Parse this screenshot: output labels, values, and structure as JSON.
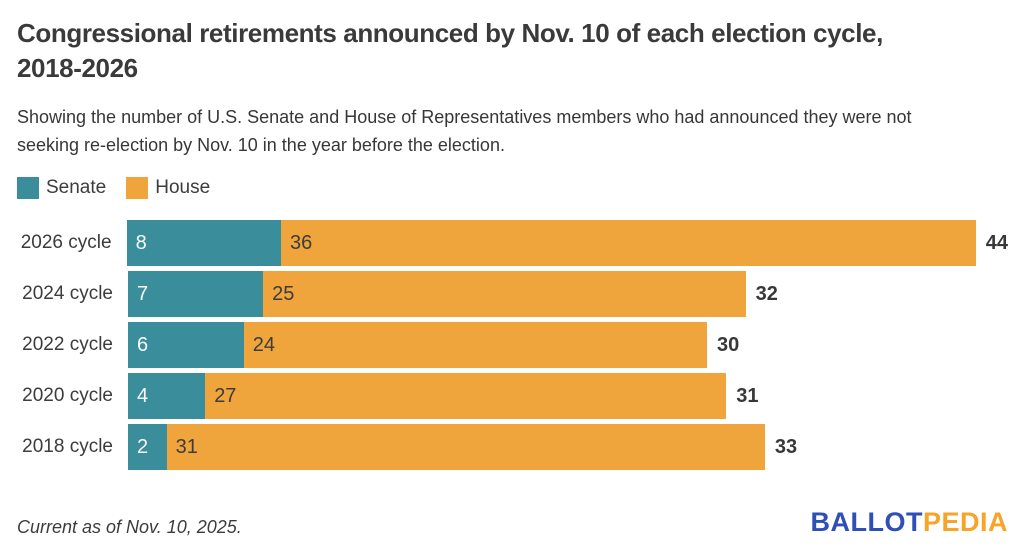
{
  "header": {
    "title_lines": [
      "Congressional retirements announced by Nov. 10 of each election cycle,",
      "2018-2026"
    ],
    "subtitle_lines": [
      "Showing the number of U.S. Senate and House of Representatives members who had announced they were not",
      "seeking re-election by Nov. 10 in the year before the election."
    ]
  },
  "legend": [
    {
      "label": "Senate",
      "color": "#3A8E9B"
    },
    {
      "label": "House",
      "color": "#F0A43C"
    }
  ],
  "chart_data": {
    "type": "bar",
    "orientation": "horizontal",
    "stacked": true,
    "title": "Congressional retirements announced by Nov. 10 of each election cycle, 2018-2026",
    "categories": [
      "2026 cycle",
      "2024 cycle",
      "2022 cycle",
      "2020 cycle",
      "2018 cycle"
    ],
    "series": [
      {
        "name": "Senate",
        "color": "#3A8E9B",
        "values": [
          8,
          7,
          6,
          4,
          2
        ]
      },
      {
        "name": "House",
        "color": "#F0A43C",
        "values": [
          36,
          25,
          24,
          27,
          31
        ]
      }
    ],
    "totals": [
      44,
      32,
      30,
      31,
      33
    ],
    "xlim": [
      0,
      44
    ],
    "grid": false,
    "legend_position": "top-left"
  },
  "footer": {
    "note": "Current as of Nov. 10, 2025.",
    "logo": {
      "part1": "BALLOT",
      "part2": "PEDIA",
      "color1": "#2E4EB8",
      "color2": "#F7A428"
    }
  }
}
